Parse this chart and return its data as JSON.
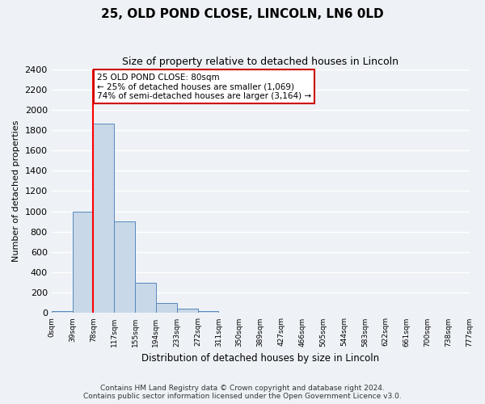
{
  "title": "25, OLD POND CLOSE, LINCOLN, LN6 0LD",
  "subtitle": "Size of property relative to detached houses in Lincoln",
  "xlabel": "Distribution of detached houses by size in Lincoln",
  "ylabel": "Number of detached properties",
  "bin_labels": [
    "0sqm",
    "39sqm",
    "78sqm",
    "117sqm",
    "155sqm",
    "194sqm",
    "233sqm",
    "272sqm",
    "311sqm",
    "350sqm",
    "389sqm",
    "427sqm",
    "466sqm",
    "505sqm",
    "544sqm",
    "583sqm",
    "622sqm",
    "661sqm",
    "700sqm",
    "738sqm",
    "777sqm"
  ],
  "bar_heights": [
    20,
    1000,
    1860,
    900,
    300,
    100,
    45,
    20,
    0,
    0,
    0,
    0,
    0,
    0,
    0,
    0,
    0,
    0,
    0,
    0
  ],
  "bar_color": "#c8d8e8",
  "bar_edge_color": "#5588bb",
  "red_line_x": 2.0,
  "annotation_line1": "25 OLD POND CLOSE: 80sqm",
  "annotation_line2": "← 25% of detached houses are smaller (1,069)",
  "annotation_line3": "74% of semi-detached houses are larger (3,164) →",
  "annotation_box_color": "#ffffff",
  "annotation_box_edge": "#cc0000",
  "ylim": [
    0,
    2400
  ],
  "yticks": [
    0,
    200,
    400,
    600,
    800,
    1000,
    1200,
    1400,
    1600,
    1800,
    2000,
    2200,
    2400
  ],
  "footer_line1": "Contains HM Land Registry data © Crown copyright and database right 2024.",
  "footer_line2": "Contains public sector information licensed under the Open Government Licence v3.0.",
  "background_color": "#eef2f6",
  "plot_background": "#eef2f6"
}
